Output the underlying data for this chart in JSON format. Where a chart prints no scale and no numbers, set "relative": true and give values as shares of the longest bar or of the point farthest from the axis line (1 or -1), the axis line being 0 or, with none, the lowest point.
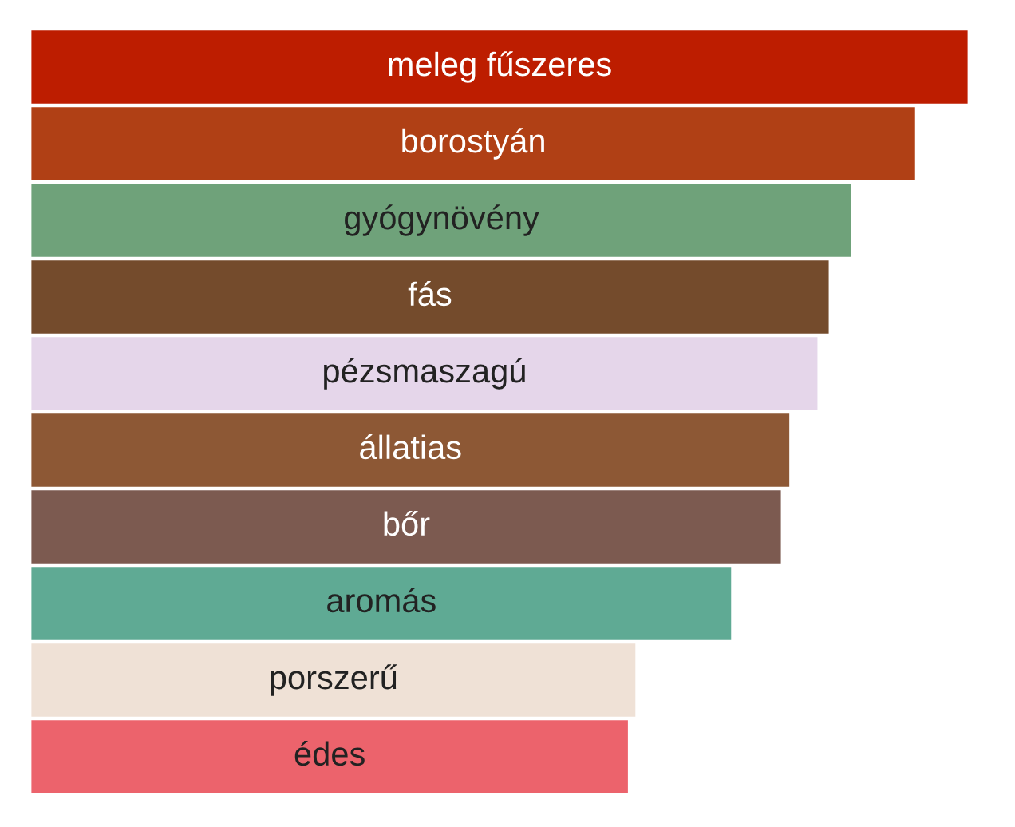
{
  "chart_data": {
    "type": "bar",
    "orientation": "horizontal",
    "relative": true,
    "data_labels": false,
    "categories": [
      "meleg fűszeres",
      "borostyán",
      "gyógynövény",
      "fás",
      "pézsmaszagú",
      "állatias",
      "bőr",
      "aromás",
      "porszerű",
      "édes"
    ],
    "values": [
      1,
      0.944,
      0.876,
      0.852,
      0.84,
      0.81,
      0.801,
      0.748,
      0.646,
      0.638
    ],
    "colors": [
      "#bd1d00",
      "#b04015",
      "#6fa27a",
      "#744b2c",
      "#e5d6ea",
      "#8d5835",
      "#7c5a50",
      "#5faa94",
      "#efe1d6",
      "#ec636c"
    ],
    "legend": false
  }
}
